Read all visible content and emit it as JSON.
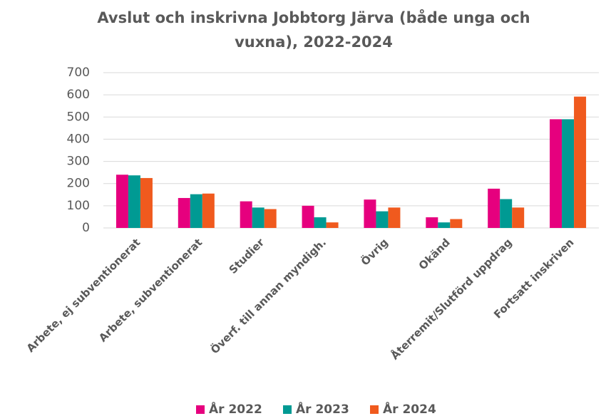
{
  "chart_data": {
    "type": "bar",
    "title": "Avslut och inskrivna Jobbtorg Järva (både unga och vuxna), 2022-2024",
    "categories": [
      "Arbete, ej subventionerat",
      "Arbete, subventionerat",
      "Studier",
      "Överf. till annan myndigh.",
      "Övrig",
      "Okänd",
      "Återremit/Slutförd uppdrag",
      "Fortsatt inskriven"
    ],
    "series": [
      {
        "name": "År 2022",
        "color": "#e6007e",
        "values": [
          240,
          135,
          120,
          100,
          128,
          48,
          177,
          490
        ]
      },
      {
        "name": "År 2023",
        "color": "#009a93",
        "values": [
          237,
          152,
          92,
          48,
          75,
          25,
          130,
          490
        ]
      },
      {
        "name": "År 2024",
        "color": "#f05a1e",
        "values": [
          225,
          155,
          85,
          25,
          92,
          40,
          92,
          592
        ]
      }
    ],
    "ylim": [
      0,
      700
    ],
    "yticks": [
      0,
      100,
      200,
      300,
      400,
      500,
      600,
      700
    ],
    "grid": true,
    "legend": "bottom"
  }
}
